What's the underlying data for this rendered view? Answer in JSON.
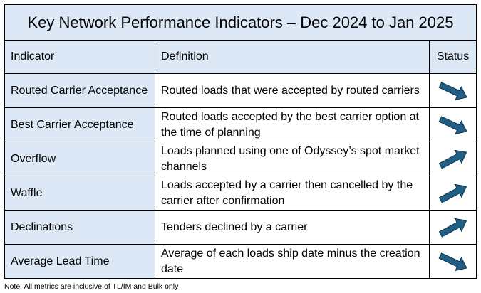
{
  "title": "Key Network Performance Indicators – Dec 2024 to Jan 2025",
  "headers": {
    "indicator": "Indicator",
    "definition": "Definition",
    "status": "Status"
  },
  "rows": [
    {
      "indicator": "Routed Carrier Acceptance",
      "definition": "Routed loads that were accepted by routed carriers",
      "status": "down-right-arrow-icon"
    },
    {
      "indicator": "Best Carrier Acceptance",
      "definition": "Routed loads accepted by the best carrier option at the time of planning",
      "status": "down-right-arrow-icon"
    },
    {
      "indicator": "Overflow",
      "definition": "Loads planned using one of Odyssey’s spot market channels",
      "status": "up-right-arrow-icon"
    },
    {
      "indicator": "Waffle",
      "definition": "Loads accepted by a carrier then cancelled by the carrier after confirmation",
      "status": "up-right-arrow-icon"
    },
    {
      "indicator": "Declinations",
      "definition": "Tenders declined by a carrier",
      "status": "up-right-arrow-icon"
    },
    {
      "indicator": "Average Lead Time",
      "definition": "Average of each loads ship date minus the creation date",
      "status": "down-right-arrow-icon"
    }
  ],
  "note": "Note: All metrics are inclusive of TL/IM and Bulk only",
  "colors": {
    "header_fill": "#dce8f6",
    "arrow_fill": "#1f5f86",
    "arrow_stroke": "#0f3550"
  }
}
